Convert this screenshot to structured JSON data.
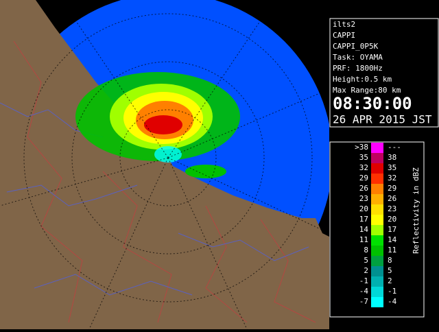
{
  "info": {
    "lines": [
      "ilts2",
      "CAPPI",
      "CAPPI_0P5K",
      "Task: OYAMA",
      "PRF: 1800Hz",
      "Height:0.5 km",
      "Max Range:80 km"
    ],
    "time": "08:30:00",
    "date": "26 APR 2015 JST"
  },
  "legend": {
    "title": "Reflectivity in dBZ",
    "rows": [
      {
        "low": ">38",
        "high": "---",
        "color": "#ff00ff"
      },
      {
        "low": "35",
        "high": "38",
        "color": "#c00060"
      },
      {
        "low": "32",
        "high": "35",
        "color": "#e00000"
      },
      {
        "low": "29",
        "high": "32",
        "color": "#ff3000"
      },
      {
        "low": "26",
        "high": "29",
        "color": "#ff8000"
      },
      {
        "low": "23",
        "high": "26",
        "color": "#ffb000"
      },
      {
        "low": "20",
        "high": "23",
        "color": "#ffe000"
      },
      {
        "low": "17",
        "high": "20",
        "color": "#ffff00"
      },
      {
        "low": "14",
        "high": "17",
        "color": "#a0ff00"
      },
      {
        "low": "11",
        "high": "14",
        "color": "#00e000"
      },
      {
        "low": "8",
        "high": "11",
        "color": "#00c000"
      },
      {
        "low": "5",
        "high": "8",
        "color": "#00a040"
      },
      {
        "low": "2",
        "high": "5",
        "color": "#009090"
      },
      {
        "low": "-1",
        "high": "2",
        "color": "#00b0b0"
      },
      {
        "low": "-4",
        "high": "-1",
        "color": "#00d8d8"
      },
      {
        "low": "-7",
        "high": "-4",
        "color": "#00ffff"
      }
    ]
  }
}
